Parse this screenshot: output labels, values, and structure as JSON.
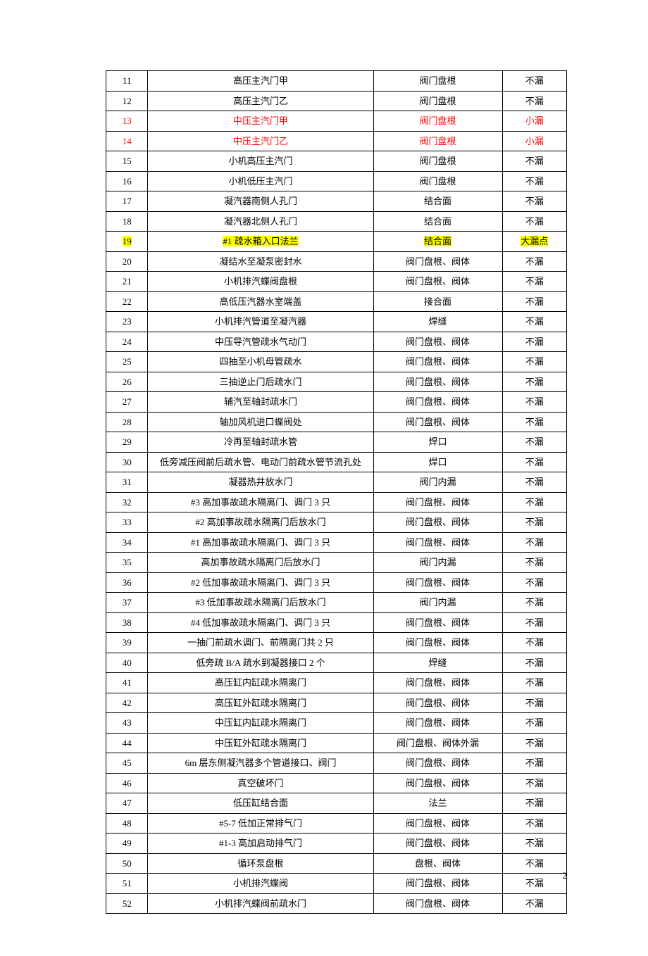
{
  "columns": {
    "num_width": 52,
    "name_width": 280,
    "part_width": 160,
    "status_width": 80
  },
  "styles": {
    "red_color": "#ff0000",
    "highlight_color": "#ffff00",
    "border_color": "#000000",
    "background_color": "#ffffff",
    "font_size": 13
  },
  "rows": [
    {
      "num": "11",
      "name": "高压主汽门甲",
      "part": "阀门盘根",
      "status": "不漏",
      "style": "normal"
    },
    {
      "num": "12",
      "name": "高压主汽门乙",
      "part": "阀门盘根",
      "status": "不漏",
      "style": "normal"
    },
    {
      "num": "13",
      "name": "中压主汽门甲",
      "part": "阀门盘根",
      "status": "小漏",
      "style": "red"
    },
    {
      "num": "14",
      "name": "中压主汽门乙",
      "part": "阀门盘根",
      "status": "小漏",
      "style": "red"
    },
    {
      "num": "15",
      "name": "小机高压主汽门",
      "part": "阀门盘根",
      "status": "不漏",
      "style": "normal"
    },
    {
      "num": "16",
      "name": "小机低压主汽门",
      "part": "阀门盘根",
      "status": "不漏",
      "style": "normal"
    },
    {
      "num": "17",
      "name": "凝汽器南侧人孔门",
      "part": "结合面",
      "status": "不漏",
      "style": "normal"
    },
    {
      "num": "18",
      "name": "凝汽器北侧人孔门",
      "part": "结合面",
      "status": "不漏",
      "style": "normal"
    },
    {
      "num": "19",
      "name": "#1 疏水箱入口法兰",
      "part": "结合面",
      "status": "大漏点",
      "style": "highlight"
    },
    {
      "num": "20",
      "name": "凝结水至凝泵密封水",
      "part": "阀门盘根、阀体",
      "status": "不漏",
      "style": "normal"
    },
    {
      "num": "21",
      "name": "小机排汽蝶阀盘根",
      "part": "阀门盘根、阀体",
      "status": "不漏",
      "style": "normal"
    },
    {
      "num": "22",
      "name": "高低压汽器水室端盖",
      "part": "接合面",
      "status": "不漏",
      "style": "normal"
    },
    {
      "num": "23",
      "name": "小机排汽管道至凝汽器",
      "part": "焊缝",
      "status": "不漏",
      "style": "normal"
    },
    {
      "num": "24",
      "name": "中压导汽管疏水气动门",
      "part": "阀门盘根、阀体",
      "status": "不漏",
      "style": "normal"
    },
    {
      "num": "25",
      "name": "四抽至小机母管疏水",
      "part": "阀门盘根、阀体",
      "status": "不漏",
      "style": "normal"
    },
    {
      "num": "26",
      "name": "三抽逆止门后疏水门",
      "part": "阀门盘根、阀体",
      "status": "不漏",
      "style": "normal"
    },
    {
      "num": "27",
      "name": "辅汽至轴封疏水门",
      "part": "阀门盘根、阀体",
      "status": "不漏",
      "style": "normal"
    },
    {
      "num": "28",
      "name": "轴加风机进口蝶阀处",
      "part": "阀门盘根、阀体",
      "status": "不漏",
      "style": "normal"
    },
    {
      "num": "29",
      "name": "冷再至轴封疏水管",
      "part": "焊口",
      "status": "不漏",
      "style": "normal"
    },
    {
      "num": "30",
      "name": "低旁减压阀前后疏水管、电动门前疏水管节流孔处",
      "part": "焊口",
      "status": "不漏",
      "style": "normal"
    },
    {
      "num": "31",
      "name": "凝器热井放水门",
      "part": "阀门内漏",
      "status": "不漏",
      "style": "normal"
    },
    {
      "num": "32",
      "name": "#3 高加事故疏水隔离门、调门 3 只",
      "part": "阀门盘根、阀体",
      "status": "不漏",
      "style": "normal"
    },
    {
      "num": "33",
      "name": "#2 高加事故疏水隔离门后放水门",
      "part": "阀门盘根、阀体",
      "status": "不漏",
      "style": "normal"
    },
    {
      "num": "34",
      "name": "#1 高加事故疏水隔离门、调门 3 只",
      "part": "阀门盘根、阀体",
      "status": "不漏",
      "style": "normal"
    },
    {
      "num": "35",
      "name": "高加事故疏水隔离门后放水门",
      "part": "阀门内漏",
      "status": "不漏",
      "style": "normal"
    },
    {
      "num": "36",
      "name": "#2 低加事故疏水隔离门、调门 3 只",
      "part": "阀门盘根、阀体",
      "status": "不漏",
      "style": "normal"
    },
    {
      "num": "37",
      "name": "#3 低加事故疏水隔离门后放水门",
      "part": "阀门内漏",
      "status": "不漏",
      "style": "normal"
    },
    {
      "num": "38",
      "name": "#4 低加事故疏水隔离门、调门 3 只",
      "part": "阀门盘根、阀体",
      "status": "不漏",
      "style": "normal"
    },
    {
      "num": "39",
      "name": "一抽门前疏水调门、前隔离门共 2 只",
      "part": "阀门盘根、阀体",
      "status": "不漏",
      "style": "normal"
    },
    {
      "num": "40",
      "name": "低旁疏 B/A 疏水到凝器接口 2 个",
      "part": "焊缝",
      "status": "不漏",
      "style": "normal"
    },
    {
      "num": "41",
      "name": "高压缸内缸疏水隔离门",
      "part": "阀门盘根、阀体",
      "status": "不漏",
      "style": "normal"
    },
    {
      "num": "42",
      "name": "高压缸外缸疏水隔离门",
      "part": "阀门盘根、阀体",
      "status": "不漏",
      "style": "normal"
    },
    {
      "num": "43",
      "name": "中压缸内缸疏水隔离门",
      "part": "阀门盘根、阀体",
      "status": "不漏",
      "style": "normal"
    },
    {
      "num": "44",
      "name": "中压缸外缸疏水隔离门",
      "part": "阀门盘根、阀体外漏",
      "status": "不漏",
      "style": "normal"
    },
    {
      "num": "45",
      "name": "6m 层东侧凝汽器多个管道接口、阀门",
      "part": "阀门盘根、阀体",
      "status": "不漏",
      "style": "normal"
    },
    {
      "num": "46",
      "name": "真空破坏门",
      "part": "阀门盘根、阀体",
      "status": "不漏",
      "style": "normal"
    },
    {
      "num": "47",
      "name": "低压缸结合面",
      "part": "法兰",
      "status": "不漏",
      "style": "normal"
    },
    {
      "num": "48",
      "name": "#5-7 低加正常排气门",
      "part": "阀门盘根、阀体",
      "status": "不漏",
      "style": "normal"
    },
    {
      "num": "49",
      "name": "#1-3 高加启动排气门",
      "part": "阀门盘根、阀体",
      "status": "不漏",
      "style": "normal"
    },
    {
      "num": "50",
      "name": "循环泵盘根",
      "part": "盘根、阀体",
      "status": "不漏",
      "style": "normal"
    },
    {
      "num": "51",
      "name": "小机排汽蝶阀",
      "part": "阀门盘根、阀体",
      "status": "不漏",
      "style": "normal"
    },
    {
      "num": "52",
      "name": "小机排汽蝶阀前疏水门",
      "part": "阀门盘根、阀体",
      "status": "不漏",
      "style": "normal"
    }
  ],
  "page_number": "2"
}
